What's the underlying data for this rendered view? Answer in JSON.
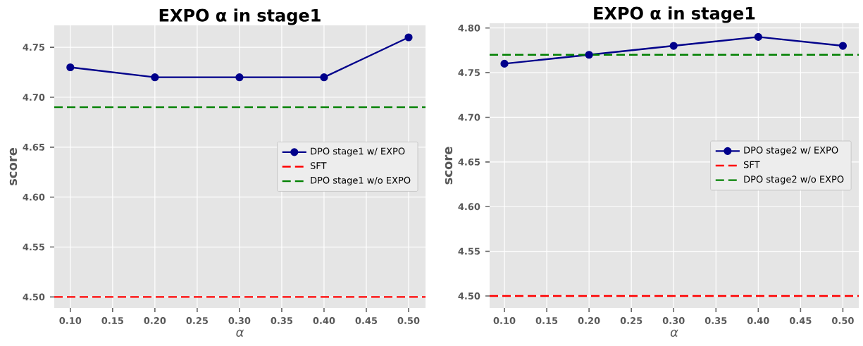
{
  "chart_data": [
    {
      "type": "line",
      "title": "EXPO α in stage1",
      "xlabel": "α",
      "ylabel": "score",
      "x": [
        0.1,
        0.2,
        0.3,
        0.4,
        0.5
      ],
      "series": [
        {
          "name": "DPO stage1 w/ EXPO",
          "color": "#00008b",
          "values": [
            4.73,
            4.72,
            4.72,
            4.72,
            4.76
          ]
        }
      ],
      "ref_lines": [
        {
          "axis": "y",
          "value": 4.5,
          "label": "SFT",
          "color": "#ff0000",
          "line_style": "dashed"
        },
        {
          "axis": "y",
          "value": 4.69,
          "label": "DPO stage1 w/o EXPO",
          "color": "#008000",
          "line_style": "dashed"
        }
      ],
      "xlim": [
        0.081,
        0.52
      ],
      "ylim": [
        4.489,
        4.772
      ],
      "xticks": [
        {
          "value": 0.1,
          "label": "0.10"
        },
        {
          "value": 0.15,
          "label": "0.15"
        },
        {
          "value": 0.2,
          "label": "0.20"
        },
        {
          "value": 0.25,
          "label": "0.25"
        },
        {
          "value": 0.3,
          "label": "0.30"
        },
        {
          "value": 0.35,
          "label": "0.35"
        },
        {
          "value": 0.4,
          "label": "0.40"
        },
        {
          "value": 0.45,
          "label": "0.45"
        },
        {
          "value": 0.5,
          "label": "0.50"
        }
      ],
      "yticks": [
        {
          "value": 4.5,
          "label": "4.50"
        },
        {
          "value": 4.55,
          "label": "4.55"
        },
        {
          "value": 4.6,
          "label": "4.60"
        },
        {
          "value": 4.65,
          "label": "4.65"
        },
        {
          "value": 4.7,
          "label": "4.70"
        },
        {
          "value": 4.75,
          "label": "4.75"
        }
      ],
      "grid": true,
      "legend": "right",
      "marker": "circle",
      "line_style": "solid"
    },
    {
      "type": "line",
      "title": "EXPO α in stage1",
      "xlabel": "α",
      "ylabel": "score",
      "x": [
        0.1,
        0.2,
        0.3,
        0.4,
        0.5
      ],
      "series": [
        {
          "name": "DPO stage2 w/ EXPO",
          "color": "#00008b",
          "values": [
            4.76,
            4.77,
            4.78,
            4.79,
            4.78
          ]
        }
      ],
      "ref_lines": [
        {
          "axis": "y",
          "value": 4.5,
          "label": "SFT",
          "color": "#ff0000",
          "line_style": "dashed"
        },
        {
          "axis": "y",
          "value": 4.77,
          "label": "DPO stage2 w/o EXPO",
          "color": "#008000",
          "line_style": "dashed"
        }
      ],
      "xlim": [
        0.0825,
        0.5188
      ],
      "ylim": [
        4.4866,
        4.8053
      ],
      "xticks": [
        {
          "value": 0.1,
          "label": "0.10"
        },
        {
          "value": 0.15,
          "label": "0.15"
        },
        {
          "value": 0.2,
          "label": "0.20"
        },
        {
          "value": 0.25,
          "label": "0.25"
        },
        {
          "value": 0.3,
          "label": "0.30"
        },
        {
          "value": 0.35,
          "label": "0.35"
        },
        {
          "value": 0.4,
          "label": "0.40"
        },
        {
          "value": 0.45,
          "label": "0.45"
        },
        {
          "value": 0.5,
          "label": "0.50"
        }
      ],
      "yticks": [
        {
          "value": 4.5,
          "label": "4.50"
        },
        {
          "value": 4.55,
          "label": "4.55"
        },
        {
          "value": 4.6,
          "label": "4.60"
        },
        {
          "value": 4.65,
          "label": "4.65"
        },
        {
          "value": 4.7,
          "label": "4.70"
        },
        {
          "value": 4.75,
          "label": "4.75"
        },
        {
          "value": 4.8,
          "label": "4.80"
        }
      ],
      "grid": true,
      "legend": "right",
      "marker": "circle",
      "line_style": "solid"
    }
  ]
}
